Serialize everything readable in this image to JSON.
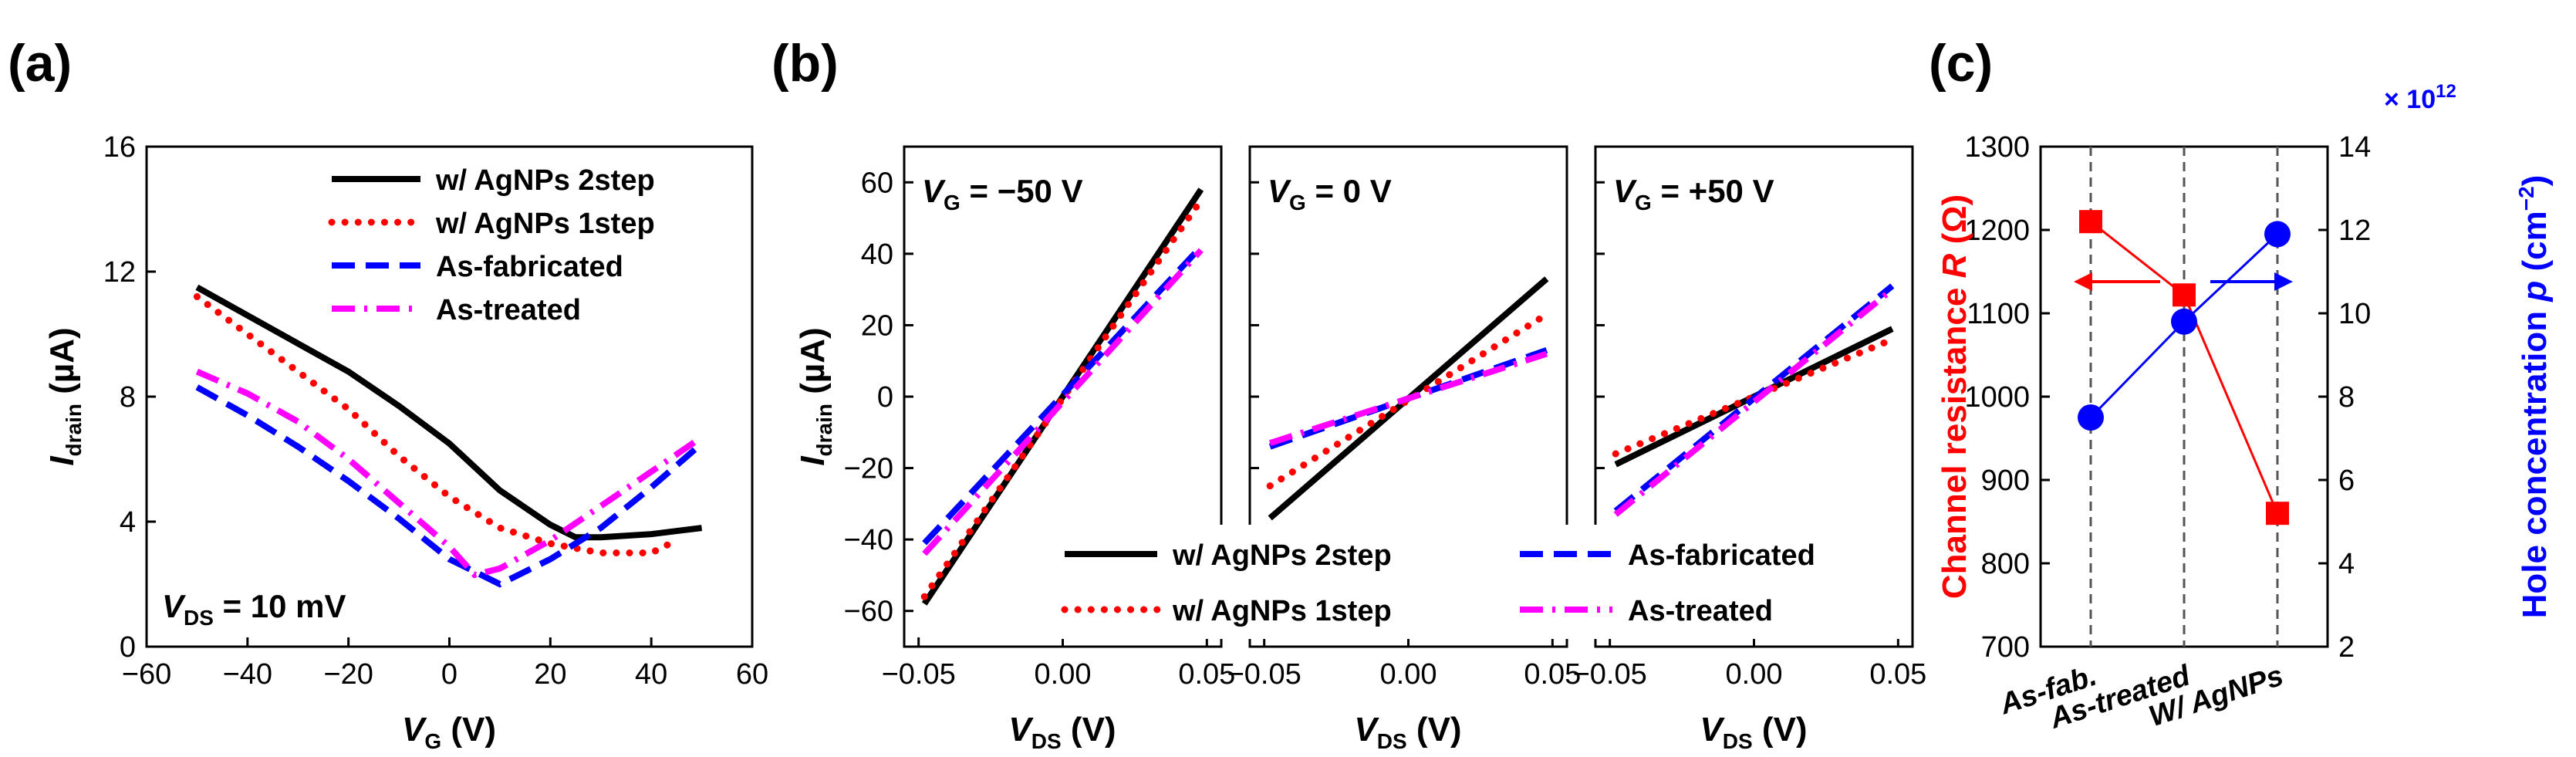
{
  "figure": {
    "panel_labels": [
      "(a)",
      "(b)",
      "(c)"
    ]
  },
  "styles": {
    "w/ AgNPs 2step": {
      "color": "#000000",
      "dash": "solid"
    },
    "w/ AgNPs 1step": {
      "color": "#ff0000",
      "dash": "dot"
    },
    "As-fabricated": {
      "color": "#0000ff",
      "dash": "dash"
    },
    "As-treated": {
      "color": "#ff00ff",
      "dash": "dashdot"
    }
  },
  "chart_data": [
    {
      "id": "a",
      "type": "line",
      "title": "",
      "xlabel": "V",
      "xlabel_sub": "G",
      "xlabel_unit": " (V)",
      "ylabel": "I",
      "ylabel_sub": "drain",
      "ylabel_unit": " (µA)",
      "xlim": [
        -60,
        60
      ],
      "ylim": [
        0,
        16
      ],
      "xticks": [
        "−60",
        "−40",
        "−20",
        "0",
        "20",
        "40",
        "60"
      ],
      "xtick_values": [
        -60,
        -40,
        -20,
        0,
        20,
        40,
        60
      ],
      "yticks": [
        "0",
        "4",
        "8",
        "12",
        "16"
      ],
      "ytick_values": [
        0,
        4,
        8,
        12,
        16
      ],
      "annotation": {
        "main": "V",
        "sub": "DS",
        "rest": " = 10 mV"
      },
      "legend_position": "top-right",
      "legend": [
        "w/ AgNPs 2step",
        "w/ AgNPs 1step",
        "As-fabricated",
        "As-treated"
      ],
      "series": [
        {
          "name": "w/ AgNPs 2step",
          "x": [
            -50,
            -40,
            -30,
            -20,
            -10,
            0,
            10,
            20,
            25,
            30,
            40,
            50
          ],
          "y": [
            11.5,
            10.6,
            9.7,
            8.8,
            7.7,
            6.5,
            5.0,
            3.9,
            3.5,
            3.5,
            3.6,
            3.8
          ]
        },
        {
          "name": "w/ AgNPs 1step",
          "x": [
            -50,
            -40,
            -30,
            -20,
            -10,
            0,
            10,
            20,
            30,
            40,
            45
          ],
          "y": [
            11.2,
            10.0,
            8.8,
            7.6,
            6.1,
            4.8,
            3.8,
            3.3,
            3.0,
            3.0,
            3.4
          ]
        },
        {
          "name": "As-fabricated",
          "x": [
            -50,
            -40,
            -30,
            -20,
            -10,
            0,
            10,
            20,
            30,
            40,
            50
          ],
          "y": [
            8.3,
            7.4,
            6.4,
            5.3,
            4.1,
            2.8,
            2.0,
            2.8,
            3.8,
            5.1,
            6.5
          ]
        },
        {
          "name": "As-treated",
          "x": [
            -50,
            -40,
            -30,
            -20,
            -10,
            0,
            5,
            10,
            20,
            30,
            40,
            50
          ],
          "y": [
            8.8,
            8.1,
            7.2,
            6.0,
            4.6,
            3.2,
            2.3,
            2.5,
            3.4,
            4.5,
            5.6,
            6.7
          ]
        }
      ]
    },
    {
      "id": "b",
      "type": "line",
      "title": "",
      "xlabel": "V",
      "xlabel_sub": "DS",
      "xlabel_unit": " (V)",
      "ylabel": "I",
      "ylabel_sub": "drain",
      "ylabel_unit": " (µA)",
      "ylim": [
        -70,
        70
      ],
      "yticks": [
        "−60",
        "−40",
        "−20",
        "0",
        "20",
        "40",
        "60"
      ],
      "ytick_values": [
        -60,
        -40,
        -20,
        0,
        20,
        40,
        60
      ],
      "xlim": [
        -0.055,
        0.055
      ],
      "xticks": [
        "−0.05",
        "0.00",
        "0.05"
      ],
      "xtick_values": [
        -0.05,
        0,
        0.05
      ],
      "legend_position": "bottom-right",
      "legend": [
        "w/ AgNPs 2step",
        "As-fabricated",
        "w/ AgNPs 1step",
        "As-treated"
      ],
      "subpanels": [
        {
          "label": {
            "main": "V",
            "sub": "G",
            "rest": " = −50 V"
          },
          "series": [
            {
              "name": "w/ AgNPs 2step",
              "x": [
                -0.048,
                0.048
              ],
              "y": [
                -58,
                58
              ]
            },
            {
              "name": "w/ AgNPs 1step",
              "x": [
                -0.048,
                0.048
              ],
              "y": [
                -56,
                55
              ]
            },
            {
              "name": "As-fabricated",
              "x": [
                -0.048,
                0.048
              ],
              "y": [
                -41,
                42
              ]
            },
            {
              "name": "As-treated",
              "x": [
                -0.048,
                0.048
              ],
              "y": [
                -44,
                41
              ]
            }
          ]
        },
        {
          "label": {
            "main": "V",
            "sub": "G",
            "rest": " = 0 V"
          },
          "series": [
            {
              "name": "w/ AgNPs 2step",
              "x": [
                -0.048,
                0.048
              ],
              "y": [
                -34,
                33
              ]
            },
            {
              "name": "w/ AgNPs 1step",
              "x": [
                -0.048,
                0.048
              ],
              "y": [
                -25,
                23
              ]
            },
            {
              "name": "As-fabricated",
              "x": [
                -0.048,
                0.048
              ],
              "y": [
                -14,
                13
              ]
            },
            {
              "name": "As-treated",
              "x": [
                -0.048,
                0.048
              ],
              "y": [
                -13,
                12
              ]
            }
          ]
        },
        {
          "label": {
            "main": "V",
            "sub": "G",
            "rest": " = +50 V"
          },
          "series": [
            {
              "name": "w/ AgNPs 2step",
              "x": [
                -0.048,
                0.048
              ],
              "y": [
                -19,
                19
              ]
            },
            {
              "name": "w/ AgNPs 1step",
              "x": [
                -0.048,
                0.048
              ],
              "y": [
                -16,
                16
              ]
            },
            {
              "name": "As-fabricated",
              "x": [
                -0.048,
                0.048
              ],
              "y": [
                -32,
                31
              ]
            },
            {
              "name": "As-treated",
              "x": [
                -0.048,
                0.048
              ],
              "y": [
                -33,
                30
              ]
            }
          ]
        }
      ]
    },
    {
      "id": "c",
      "type": "line",
      "title": "",
      "categories": [
        "As-fab.",
        "As-treated",
        "W/ AgNPs"
      ],
      "ylabel_left": "Channel resistance R (Ω)",
      "ylabel_left_parts": [
        "Channel resistance ",
        "R",
        " (Ω)"
      ],
      "ylabel_right_parts": [
        "Hole concentration ",
        "p",
        " (cm",
        "−2",
        ")"
      ],
      "scale_note": {
        "prefix": "× 10",
        "exp": "12"
      },
      "ylim_left": [
        700,
        1300
      ],
      "yticks_left": [
        "700",
        "800",
        "900",
        "1000",
        "1100",
        "1200",
        "1300"
      ],
      "ytick_values_left": [
        700,
        800,
        900,
        1000,
        1100,
        1200,
        1300
      ],
      "ylim_right": [
        2,
        14
      ],
      "yticks_right": [
        "2",
        "4",
        "6",
        "8",
        "10",
        "12",
        "14"
      ],
      "ytick_values_right": [
        2,
        4,
        6,
        8,
        10,
        12,
        14
      ],
      "series": [
        {
          "name": "Channel resistance",
          "axis": "left",
          "color": "#ff0000",
          "marker": "square",
          "values": [
            1210,
            1122,
            860
          ]
        },
        {
          "name": "Hole concentration",
          "axis": "right",
          "color": "#0000ff",
          "marker": "circle",
          "values": [
            7.5,
            9.8,
            11.9
          ]
        }
      ],
      "grid": "vertical dashed at categories"
    }
  ]
}
